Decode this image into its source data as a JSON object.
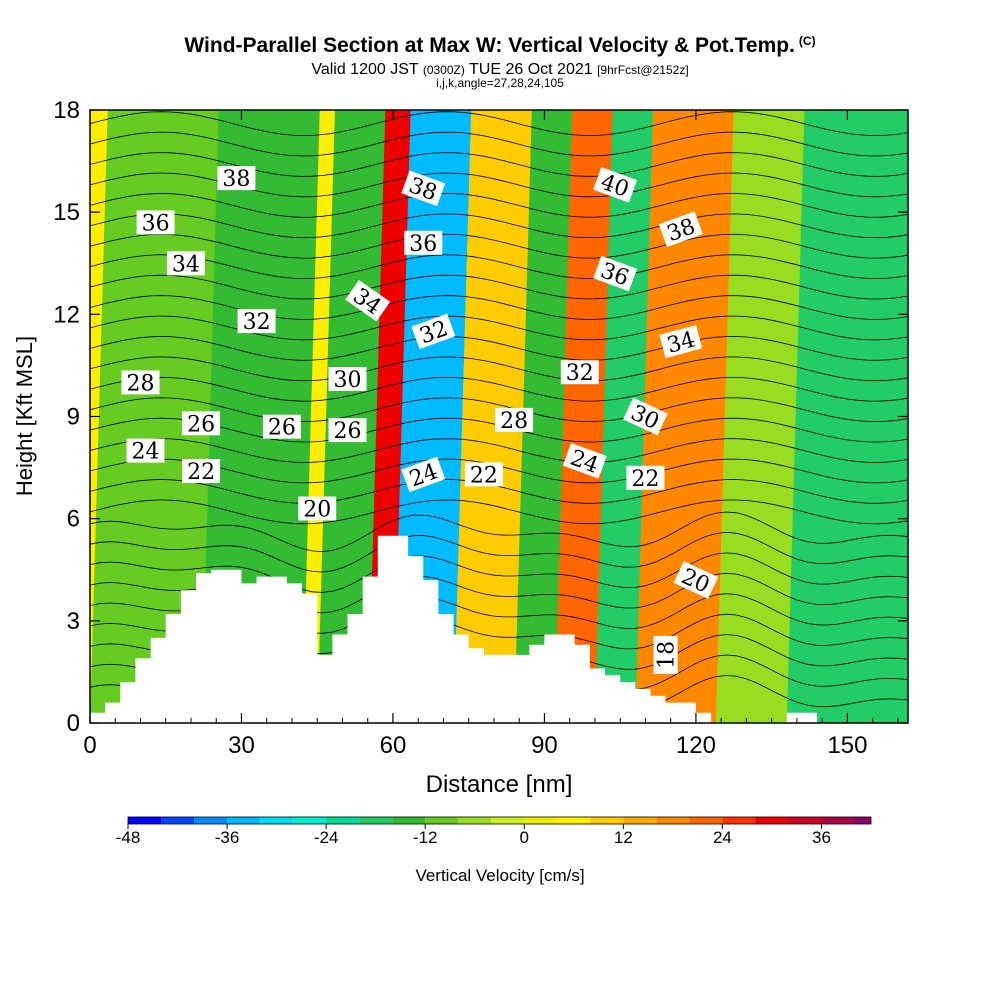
{
  "header": {
    "title": "Wind-Parallel Section at Max W: Vertical Velocity & Pot.Temp.",
    "copyright": "(C)",
    "valid_main_1": "Valid 1200 JST",
    "valid_small_1": "(0300Z)",
    "valid_main_2": "TUE 26 Oct 2021",
    "valid_small_2": "[9hrFcst@2152z]",
    "params": "i,j,k,angle=27,28,24,105"
  },
  "chart_data": {
    "type": "heatmap",
    "xlabel": "Distance [nm]",
    "ylabel": "Height [Kft MSL]",
    "xlim": [
      0,
      162
    ],
    "ylim": [
      0,
      18
    ],
    "xticks": [
      0,
      30,
      60,
      90,
      120,
      150
    ],
    "yticks": [
      0,
      3,
      6,
      9,
      12,
      15,
      18
    ],
    "colorbar": {
      "label": "Vertical Velocity [cm/s]",
      "ticks": [
        -48,
        -36,
        -24,
        -12,
        0,
        12,
        24,
        36
      ],
      "range": [
        -48,
        42
      ],
      "step": 4
    },
    "bands": [
      {
        "x_low": 0,
        "x_high": 24,
        "value": -10
      },
      {
        "x_low": 22,
        "x_high": 42,
        "value": -14
      },
      {
        "x_low": 45,
        "x_high": 60,
        "value": -16
      },
      {
        "x_low": 55,
        "x_high": 70,
        "value": 30
      },
      {
        "x_low": 60,
        "x_high": 72,
        "value": -36
      },
      {
        "x_low": 72,
        "x_high": 88,
        "value": 10
      },
      {
        "x_low": 84,
        "x_high": 96,
        "value": -16
      },
      {
        "x_low": 92,
        "x_high": 104,
        "value": 22
      },
      {
        "x_low": 100,
        "x_high": 112,
        "value": -18
      },
      {
        "x_low": 108,
        "x_high": 124,
        "value": 18
      },
      {
        "x_low": 124,
        "x_high": 140,
        "value": -8
      },
      {
        "x_low": 138,
        "x_high": 162,
        "value": -20
      }
    ],
    "terrain": {
      "x": [
        0,
        3,
        6,
        9,
        12,
        15,
        18,
        21,
        24,
        27,
        30,
        33,
        36,
        39,
        42,
        45,
        48,
        51,
        54,
        57,
        60,
        63,
        66,
        69,
        72,
        75,
        78,
        81,
        84,
        87,
        90,
        93,
        96,
        99,
        102,
        105,
        108,
        111,
        114,
        117,
        120,
        123,
        126,
        129,
        132,
        135,
        138,
        141,
        144,
        147,
        150,
        153,
        156,
        159,
        162
      ],
      "y": [
        0.3,
        0.6,
        1.2,
        1.9,
        2.5,
        3.2,
        3.9,
        4.4,
        4.5,
        4.5,
        4.1,
        4.3,
        4.3,
        4.1,
        3.8,
        2.0,
        2.6,
        3.2,
        4.3,
        5.5,
        5.5,
        4.9,
        4.2,
        3.2,
        2.6,
        2.2,
        2.0,
        2.0,
        2.0,
        2.3,
        2.6,
        2.6,
        2.3,
        1.6,
        1.4,
        1.2,
        1.0,
        0.8,
        0.6,
        0.6,
        0.3,
        0,
        0,
        0,
        0,
        0,
        0.3,
        0.3,
        0,
        0,
        0,
        0,
        0,
        0,
        0
      ]
    },
    "contour_labels": [
      {
        "text": "38",
        "x": 29,
        "y": 16.0,
        "angle": 0
      },
      {
        "text": "36",
        "x": 13,
        "y": 14.7,
        "angle": 0
      },
      {
        "text": "34",
        "x": 19,
        "y": 13.5,
        "angle": 0
      },
      {
        "text": "32",
        "x": 33,
        "y": 11.8,
        "angle": 0
      },
      {
        "text": "28",
        "x": 10,
        "y": 10.0,
        "angle": 0
      },
      {
        "text": "26",
        "x": 22,
        "y": 8.8,
        "angle": 0
      },
      {
        "text": "24",
        "x": 11,
        "y": 8.0,
        "angle": 0
      },
      {
        "text": "22",
        "x": 22,
        "y": 7.4,
        "angle": 0
      },
      {
        "text": "26",
        "x": 38,
        "y": 8.7,
        "angle": 0
      },
      {
        "text": "26",
        "x": 51,
        "y": 8.6,
        "angle": 0
      },
      {
        "text": "30",
        "x": 51,
        "y": 10.1,
        "angle": 0
      },
      {
        "text": "20",
        "x": 45,
        "y": 6.3,
        "angle": 0
      },
      {
        "text": "34",
        "x": 55,
        "y": 12.4,
        "angle": 35
      },
      {
        "text": "38",
        "x": 66,
        "y": 15.7,
        "angle": 20
      },
      {
        "text": "36",
        "x": 66,
        "y": 14.1,
        "angle": 0
      },
      {
        "text": "32",
        "x": 68,
        "y": 11.5,
        "angle": -20
      },
      {
        "text": "24",
        "x": 66,
        "y": 7.3,
        "angle": -20
      },
      {
        "text": "22",
        "x": 78,
        "y": 7.3,
        "angle": 0
      },
      {
        "text": "28",
        "x": 84,
        "y": 8.9,
        "angle": 0
      },
      {
        "text": "32",
        "x": 97,
        "y": 10.3,
        "angle": 0
      },
      {
        "text": "24",
        "x": 98,
        "y": 7.7,
        "angle": 20
      },
      {
        "text": "40",
        "x": 104,
        "y": 15.8,
        "angle": 20
      },
      {
        "text": "36",
        "x": 104,
        "y": 13.2,
        "angle": 20
      },
      {
        "text": "38",
        "x": 117,
        "y": 14.5,
        "angle": -20
      },
      {
        "text": "34",
        "x": 117,
        "y": 11.2,
        "angle": -15
      },
      {
        "text": "30",
        "x": 110,
        "y": 9.0,
        "angle": 25
      },
      {
        "text": "22",
        "x": 110,
        "y": 7.2,
        "angle": 0
      },
      {
        "text": "20",
        "x": 120,
        "y": 4.2,
        "angle": 25
      },
      {
        "text": "18",
        "x": 114,
        "y": 2.0,
        "angle": -90
      }
    ]
  }
}
